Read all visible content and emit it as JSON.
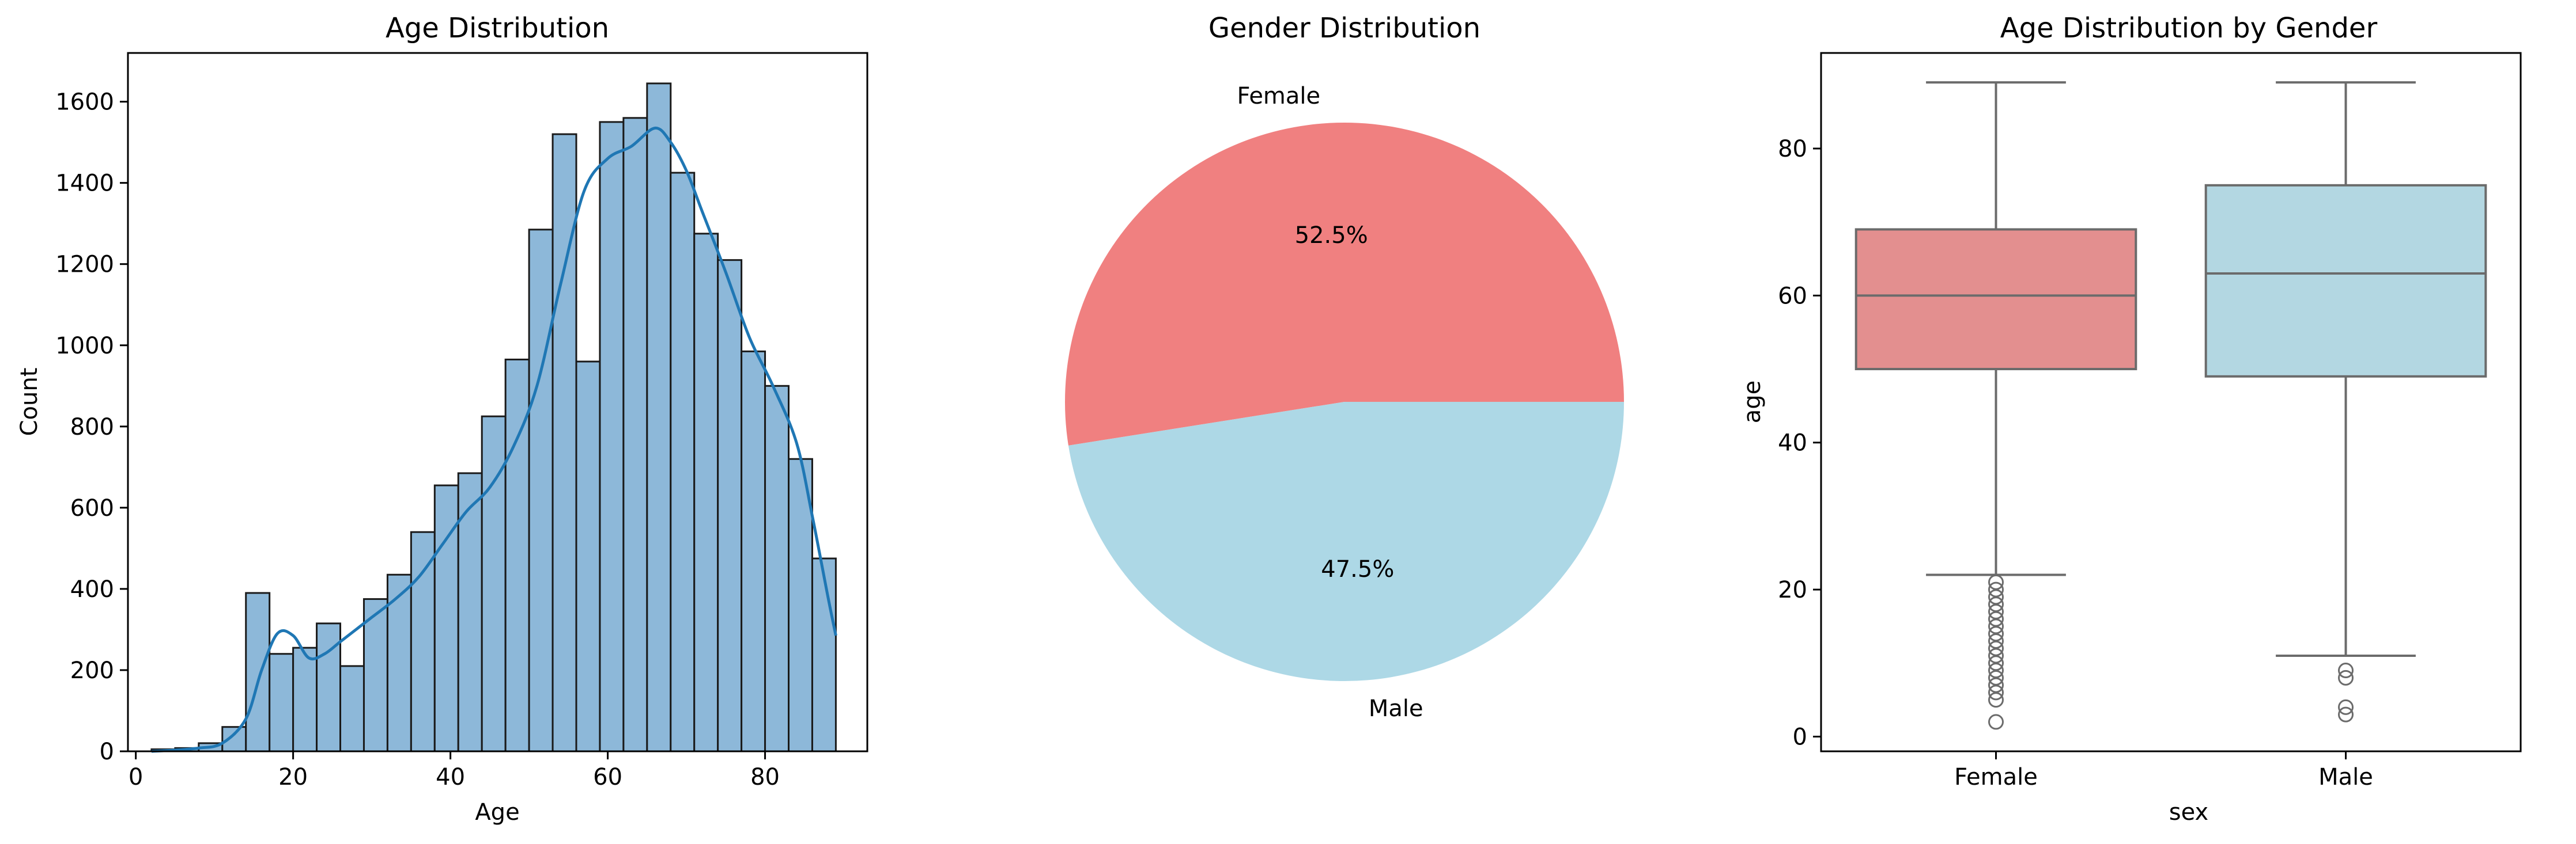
{
  "colors": {
    "hist_fill": "#8db8d9",
    "hist_edge": "#1a1a1a",
    "kde_line": "#1f77b4",
    "female": "#f08080",
    "male": "#add8e6",
    "box_female": "#e38f8f",
    "box_male": "#b3d7e2",
    "box_line": "#6b6b6b"
  },
  "chart_data": [
    {
      "type": "bar",
      "subtype": "histogram",
      "title": "Age Distribution",
      "xlabel": "Age",
      "ylabel": "Count",
      "xlim": [
        -1,
        93
      ],
      "ylim": [
        0,
        1720
      ],
      "xticks": [
        0,
        20,
        40,
        60,
        80
      ],
      "yticks": [
        0,
        200,
        400,
        600,
        800,
        1000,
        1200,
        1400,
        1600
      ],
      "bin_edges": [
        2,
        5,
        8,
        11,
        14,
        17,
        20,
        23,
        26,
        29,
        32,
        35,
        38,
        41,
        44,
        47,
        50,
        53,
        56,
        59,
        62,
        65,
        68,
        71,
        74,
        77,
        80,
        83,
        86,
        89
      ],
      "values": [
        5,
        8,
        20,
        60,
        390,
        240,
        255,
        315,
        210,
        375,
        435,
        540,
        655,
        685,
        825,
        965,
        1285,
        1520,
        960,
        1550,
        1560,
        1645,
        1425,
        1275,
        1210,
        985,
        900,
        720,
        475
      ],
      "kde": {
        "x": [
          2,
          5,
          8,
          11,
          14,
          16,
          18,
          20,
          22,
          24,
          26,
          28,
          30,
          33,
          36,
          39,
          42,
          45,
          48,
          51,
          54,
          57,
          60,
          63,
          66,
          68,
          70,
          72,
          75,
          78,
          81,
          84,
          86,
          88,
          89
        ],
        "y": [
          0,
          3,
          8,
          20,
          80,
          200,
          290,
          285,
          230,
          240,
          270,
          300,
          330,
          375,
          430,
          510,
          590,
          650,
          750,
          900,
          1150,
          1380,
          1460,
          1490,
          1535,
          1500,
          1430,
          1330,
          1180,
          1020,
          900,
          760,
          580,
          380,
          285
        ]
      }
    },
    {
      "type": "pie",
      "title": "Gender Distribution",
      "labels": [
        "Female",
        "Male"
      ],
      "values": [
        52.5,
        47.5
      ],
      "value_labels": [
        "52.5%",
        "47.5%"
      ]
    },
    {
      "type": "box",
      "title": "Age Distribution by Gender",
      "xlabel": "sex",
      "ylabel": "age",
      "categories": [
        "Female",
        "Male"
      ],
      "ylim": [
        -2,
        93
      ],
      "yticks": [
        0,
        20,
        40,
        60,
        80
      ],
      "boxes": [
        {
          "name": "Female",
          "whislo": 22,
          "q1": 50,
          "med": 60,
          "q3": 69,
          "whishi": 89,
          "fliers": [
            2,
            5,
            6,
            7,
            8,
            9,
            10,
            11,
            12,
            13,
            14,
            15,
            16,
            17,
            18,
            19,
            20,
            21
          ]
        },
        {
          "name": "Male",
          "whislo": 11,
          "q1": 49,
          "med": 63,
          "q3": 75,
          "whishi": 89,
          "fliers": [
            3,
            4,
            8,
            9
          ]
        }
      ]
    }
  ]
}
